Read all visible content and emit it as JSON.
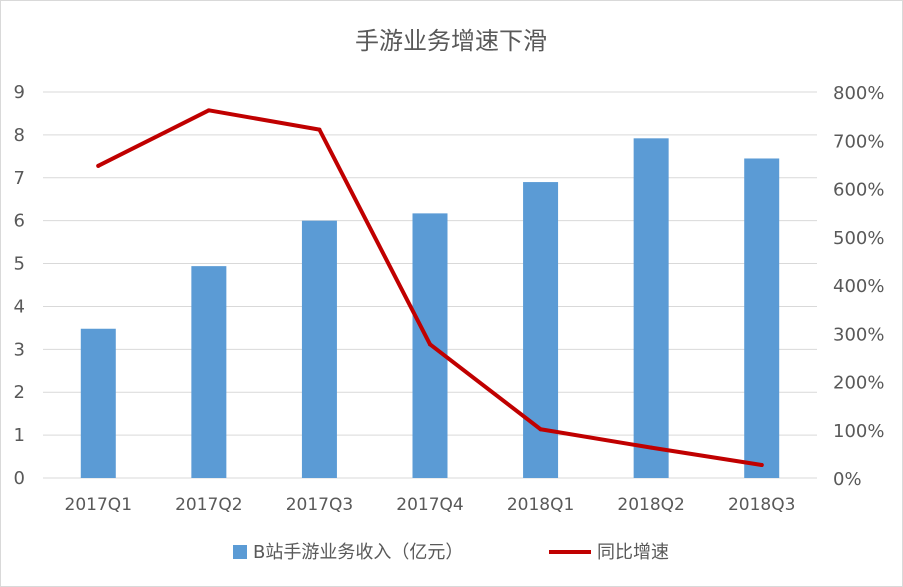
{
  "chart_data": {
    "type": "bar",
    "title": "手游业务增速下滑",
    "categories": [
      "2017Q1",
      "2017Q2",
      "2017Q3",
      "2017Q4",
      "2018Q1",
      "2018Q2",
      "2018Q3"
    ],
    "series": [
      {
        "name": "B站手游业务收入（亿元）",
        "type": "bar",
        "axis": "left",
        "values": [
          3.48,
          4.94,
          6.0,
          6.17,
          6.9,
          7.92,
          7.45
        ],
        "color": "#5b9bd5"
      },
      {
        "name": "同比增速",
        "type": "line",
        "axis": "right",
        "values": [
          647,
          762,
          722,
          277,
          101,
          63,
          27
        ],
        "unit": "%",
        "color": "#c00000"
      }
    ],
    "y_left": {
      "ylim": [
        0,
        9
      ],
      "ticks": [
        "0",
        "1",
        "2",
        "3",
        "4",
        "5",
        "6",
        "7",
        "8",
        "9"
      ]
    },
    "y_right": {
      "ylim": [
        0,
        800
      ],
      "ticks": [
        "0%",
        "100%",
        "200%",
        "300%",
        "400%",
        "500%",
        "600%",
        "700%",
        "800%"
      ]
    },
    "grid": true,
    "legend_position": "bottom",
    "gridline_color": "#d9d9d9"
  }
}
